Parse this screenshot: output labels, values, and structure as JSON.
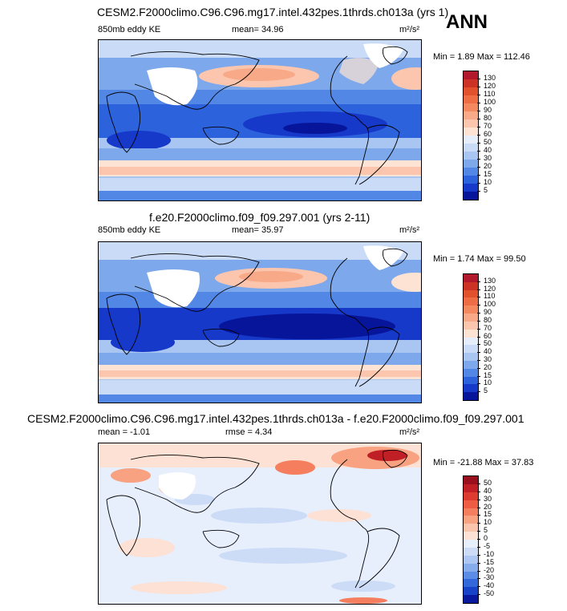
{
  "season": "ANN",
  "panels": [
    {
      "title": "CESM2.F2000climo.C96.C96.mg17.intel.432pes.1thrds.ch013a (yrs 1)",
      "variable": "850mb eddy KE",
      "stat_label": "mean=",
      "stat_value": "34.96",
      "units": "m²/s²",
      "minmax": "Min =   1.89 Max = 112.46",
      "levels": [
        "130",
        "120",
        "110",
        "100",
        "90",
        "80",
        "70",
        "60",
        "50",
        "40",
        "30",
        "20",
        "15",
        "10",
        "5"
      ],
      "colors": [
        "#b2182b",
        "#cc3324",
        "#e0512c",
        "#ef6d45",
        "#f4895f",
        "#f8a987",
        "#fbc6ad",
        "#fde3d3",
        "#e6eefb",
        "#c9dbf7",
        "#a9c5f2",
        "#7ea8ec",
        "#5287e6",
        "#2d62dd",
        "#1639c9",
        "#07159b"
      ]
    },
    {
      "title": "f.e20.F2000climo.f09_f09.297.001 (yrs 2-11)",
      "variable": "850mb eddy KE",
      "stat_label": "mean=",
      "stat_value": "35.97",
      "units": "m²/s²",
      "minmax": "Min =   1.74 Max =  99.50",
      "levels": [
        "130",
        "120",
        "110",
        "100",
        "90",
        "80",
        "70",
        "60",
        "50",
        "40",
        "30",
        "20",
        "15",
        "10",
        "5"
      ],
      "colors": [
        "#b2182b",
        "#cc3324",
        "#e0512c",
        "#ef6d45",
        "#f4895f",
        "#f8a987",
        "#fbc6ad",
        "#fde3d3",
        "#e6eefb",
        "#c9dbf7",
        "#a9c5f2",
        "#7ea8ec",
        "#5287e6",
        "#2d62dd",
        "#1639c9",
        "#07159b"
      ]
    },
    {
      "title": "CESM2.F2000climo.C96.C96.mg17.intel.432pes.1thrds.ch013a - f.e20.F2000climo.f09_f09.297.001",
      "variable": "mean =  -1.01",
      "stat_label": "rmse =",
      "stat_value": "4.34",
      "units": "m²/s²",
      "minmax": "Min = -21.88 Max =  37.83",
      "levels": [
        "50",
        "40",
        "30",
        "20",
        "15",
        "10",
        "5",
        "0",
        "-5",
        "-10",
        "-15",
        "-20",
        "-30",
        "-40",
        "-50"
      ],
      "colors": [
        "#9a0f1d",
        "#c11f26",
        "#dd3b30",
        "#ee5c44",
        "#f47e5d",
        "#f8a282",
        "#fbc4ad",
        "#fde1d4",
        "#e7eefc",
        "#ccdcf7",
        "#adc7f2",
        "#86acec",
        "#5b8de6",
        "#3368da",
        "#1843c9",
        "#08199e"
      ]
    }
  ]
}
